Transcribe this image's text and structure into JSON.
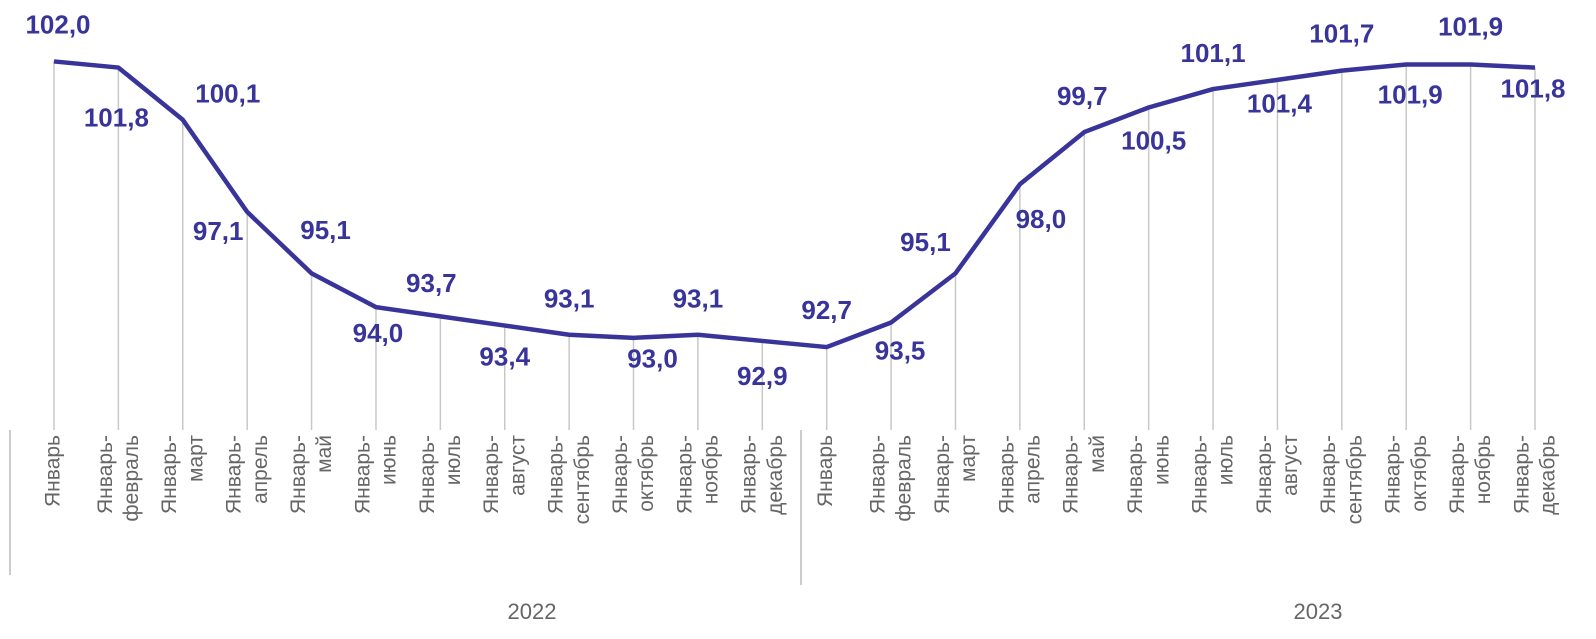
{
  "chart_data": {
    "type": "line",
    "categories": [
      "Январь",
      "Январь-февраль",
      "Январь-март",
      "Январь-апрель",
      "Январь-май",
      "Январь-июнь",
      "Январь-июль",
      "Январь-август",
      "Январь-сентябрь",
      "Январь-октябрь",
      "Январь-ноябрь",
      "Январь-декабрь",
      "Январь",
      "Январь-февраль",
      "Январь-март",
      "Январь-апрель",
      "Январь-май",
      "Январь-июнь",
      "Январь-июль",
      "Январь-август",
      "Январь-сентябрь",
      "Январь-октябрь",
      "Январь-ноябрь",
      "Январь-декабрь"
    ],
    "x_groups": [
      "2022",
      "2023"
    ],
    "values": [
      102.0,
      101.8,
      100.1,
      97.1,
      95.1,
      94.0,
      93.7,
      93.4,
      93.1,
      93.0,
      93.1,
      92.9,
      92.7,
      93.5,
      95.1,
      98.0,
      99.7,
      100.5,
      101.1,
      101.4,
      101.7,
      101.9,
      101.9,
      101.8
    ],
    "value_labels": [
      "102,0",
      "101,8",
      "100,1",
      "97,1",
      "95,1",
      "94,0",
      "93,7",
      "93,4",
      "93,1",
      "93,0",
      "93,1",
      "92,9",
      "92,7",
      "93,5",
      "95,1",
      "98,0",
      "99,7",
      "100,5",
      "101,1",
      "101,4",
      "101,7",
      "101,9",
      "101,9",
      "101,8"
    ],
    "color": "#38349a",
    "ylim": [
      90,
      104
    ]
  }
}
